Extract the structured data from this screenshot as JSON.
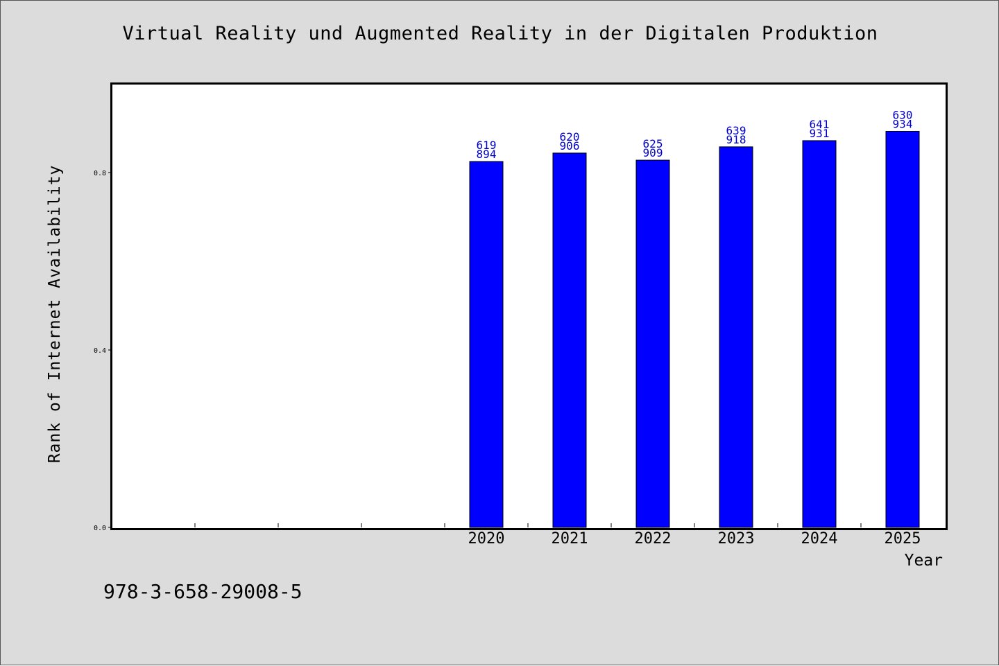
{
  "chart_data": {
    "type": "bar",
    "title": "Virtual Reality und Augmented Reality in der Digitalen Produktion",
    "xlabel": "Year",
    "ylabel": "Rank of Internet Availability",
    "categories": [
      "",
      "",
      "",
      "",
      "2020",
      "2021",
      "2022",
      "2023",
      "2024",
      "2025"
    ],
    "values": [
      null,
      null,
      null,
      null,
      0.825,
      0.844,
      0.828,
      0.858,
      0.872,
      0.893
    ],
    "data_labels": [
      null,
      null,
      null,
      null,
      [
        "619",
        "894"
      ],
      [
        "620",
        "906"
      ],
      [
        "625",
        "909"
      ],
      [
        "639",
        "918"
      ],
      [
        "641",
        "931"
      ],
      [
        "630",
        "934"
      ]
    ],
    "yticks": [
      "0.0",
      "0.4",
      "0.8"
    ],
    "ylim": [
      0,
      1.0
    ],
    "grid": false,
    "legend": "none",
    "colors": {
      "bar": "#0000ff",
      "bar_label": "#0000cc",
      "background": "#dcdcdc",
      "plot_background": "#ffffff"
    }
  },
  "footer": {
    "isbn": "978-3-658-29008-5"
  }
}
